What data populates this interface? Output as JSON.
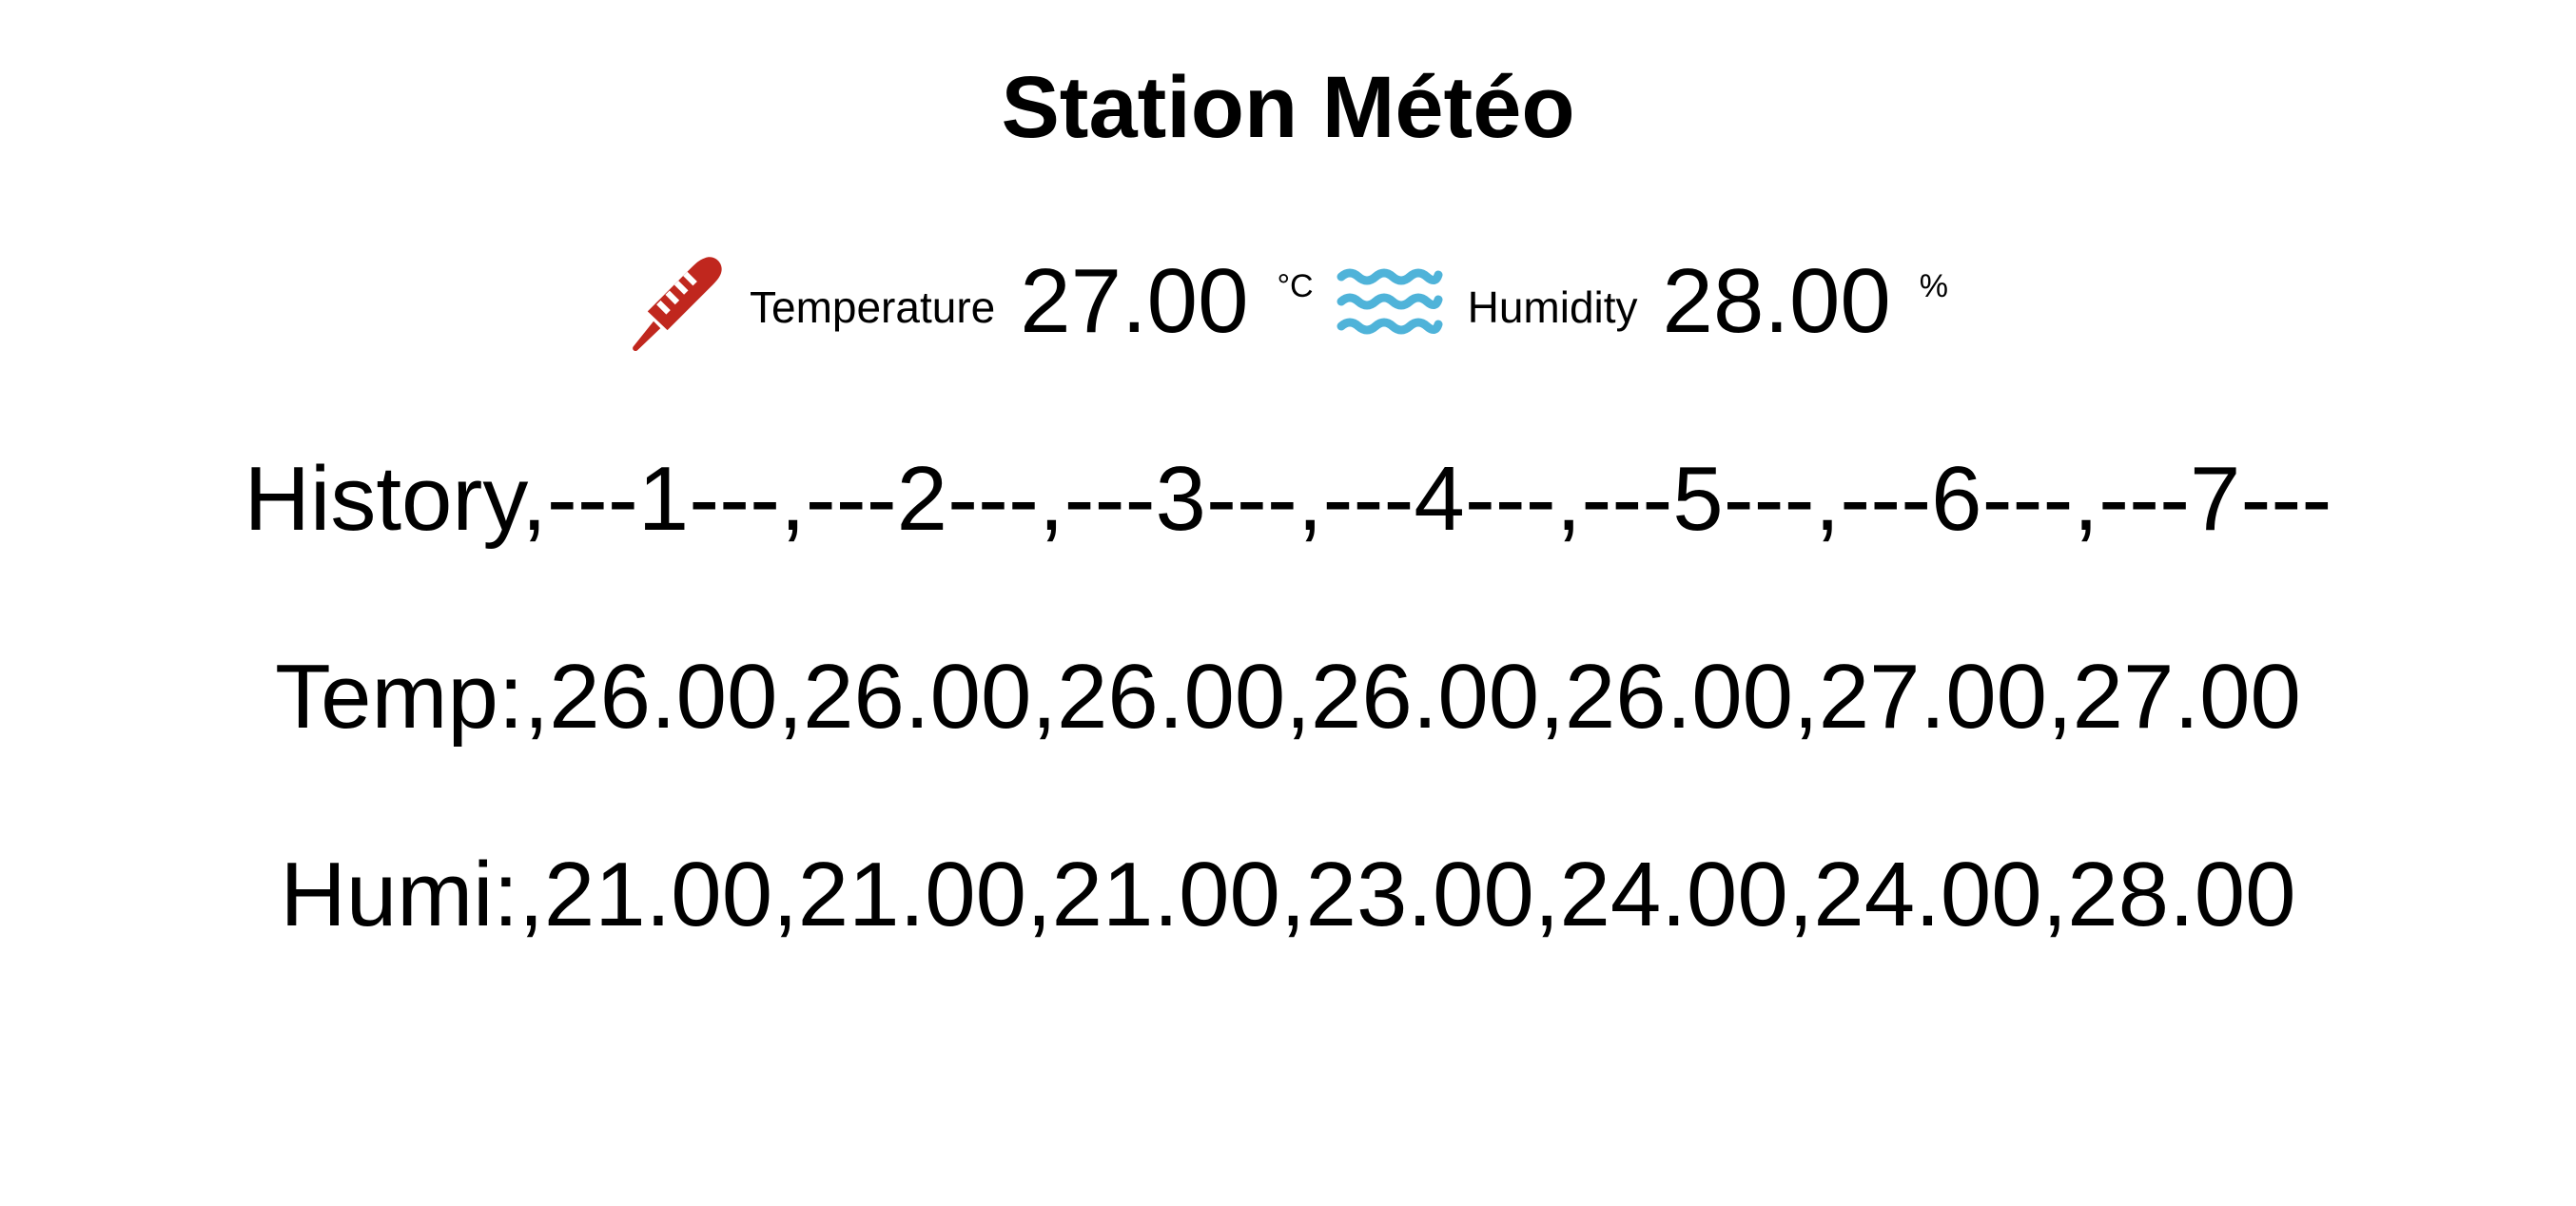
{
  "page": {
    "title": "Station Météo"
  },
  "current": {
    "temperature": {
      "icon": "thermometer-icon",
      "icon_color": "#c0271e",
      "label": "Temperature",
      "value": "27.00",
      "unit": "°C"
    },
    "humidity": {
      "icon": "water-waves-icon",
      "icon_color": "#4fb3d9",
      "label": "Humidity",
      "value": "28.00",
      "unit": "%"
    }
  },
  "history": {
    "header_label": "History",
    "columns": [
      "---1---",
      "---2---",
      "---3---",
      "---4---",
      "---5---",
      "---6---",
      "---7---"
    ],
    "temp_label": "Temp:",
    "temp_values": [
      "26.00",
      "26.00",
      "26.00",
      "26.00",
      "26.00",
      "27.00",
      "27.00"
    ],
    "humi_label": "Humi:",
    "humi_values": [
      "21.00",
      "21.00",
      "21.00",
      "23.00",
      "24.00",
      "24.00",
      "28.00"
    ]
  }
}
